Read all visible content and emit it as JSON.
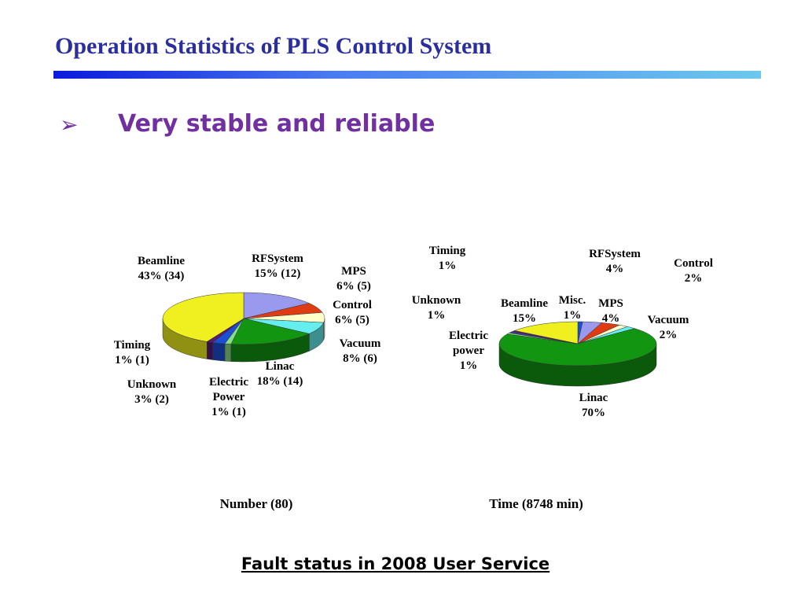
{
  "slide": {
    "title": "Operation Statistics of PLS Control  System",
    "bullet": "Very stable and reliable",
    "caption": "Fault status in 2008 User Service"
  },
  "chart_data": [
    {
      "type": "pie",
      "title": "Number (80)",
      "categories": [
        "RFSystem",
        "MPS",
        "Control",
        "Vacuum",
        "Linac",
        "Electric Power",
        "Unknown",
        "Timing",
        "Beamline"
      ],
      "values": [
        12,
        5,
        5,
        6,
        14,
        1,
        2,
        1,
        34
      ],
      "value_labels": [
        "15% (12)",
        "6% (5)",
        "6% (5)",
        "8% (6)",
        "18% (14)",
        "1% (1)",
        "3% (2)",
        "1% (1)",
        "43% (34)"
      ],
      "colors": [
        "#9999ee",
        "#e03c14",
        "#ffffcc",
        "#66eeee",
        "#129612",
        "#88dd88",
        "#1a4fd6",
        "#5a1a6e",
        "#f0f020"
      ]
    },
    {
      "type": "pie",
      "title": "Time (8748 min)",
      "categories": [
        "Misc.",
        "RFSystem",
        "MPS",
        "Control",
        "Vacuum",
        "Linac",
        "Electric power",
        "Unknown",
        "Timing",
        "Beamline"
      ],
      "values": [
        1,
        4,
        4,
        2,
        2,
        70,
        1,
        1,
        1,
        15
      ],
      "value_labels": [
        "1%",
        "4%",
        "4%",
        "2%",
        "2%",
        "70%",
        "1%",
        "1%",
        "1%",
        "15%"
      ],
      "colors": [
        "#1a4fd6",
        "#9999ee",
        "#e03c14",
        "#ffffcc",
        "#66eeee",
        "#129612",
        "#88dd88",
        "#3344aa",
        "#5a1a6e",
        "#f0f020"
      ]
    }
  ]
}
